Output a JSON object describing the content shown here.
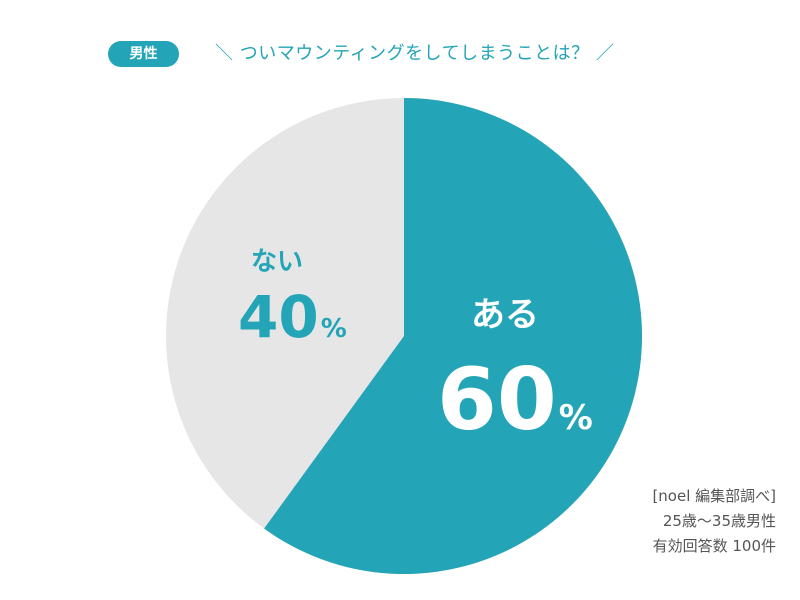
{
  "header": {
    "badge": "男性",
    "title": "＼ ついマウンティングをしてしまうことは？ ／"
  },
  "colors": {
    "accent": "#23a5b7",
    "other": "#e6e6e6"
  },
  "labels": {
    "yes": {
      "name": "ある",
      "value": "60",
      "unit": "%"
    },
    "no": {
      "name": "ない",
      "value": "40",
      "unit": "%"
    }
  },
  "source": {
    "line1": "[noel 編集部調べ]",
    "line2": "25歳〜35歳男性",
    "line3": "有効回答数 100件"
  },
  "chart_data": {
    "type": "pie",
    "title": "ついマウンティングをしてしまうことは？",
    "subtitle": "男性",
    "categories": [
      "ある",
      "ない"
    ],
    "values": [
      60,
      40
    ],
    "unit": "%",
    "colors": [
      "#23a5b7",
      "#e6e6e6"
    ],
    "start_angle": "12 o'clock, clockwise",
    "legend": "none (inline labels)",
    "annotations": [
      "[noel 編集部調べ]",
      "25歳〜35歳男性",
      "有効回答数 100件"
    ]
  }
}
